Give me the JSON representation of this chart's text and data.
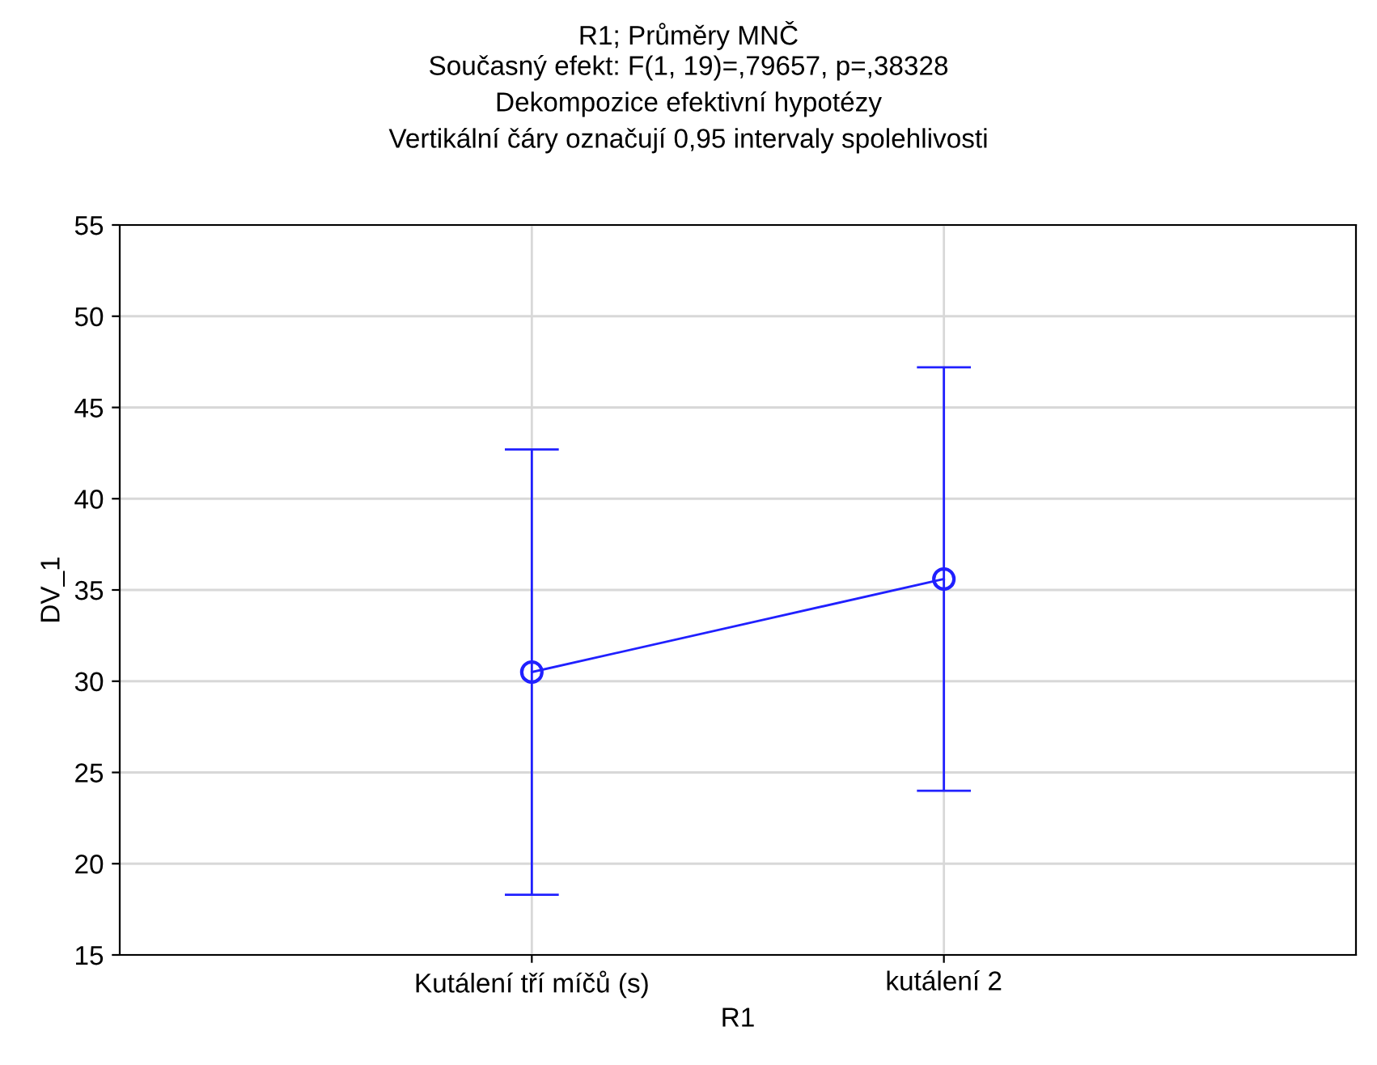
{
  "chart_data": {
    "type": "line",
    "title": "R1; Průměry MNČ",
    "subtitle": "Současný efekt: F(1, 19)=,79657, p=,38328\nDekompozice efektivní hypotézy\nVertikální čáry označují 0,95 intervaly spolehlivosti",
    "xlabel": "R1",
    "ylabel": "DV_1",
    "categories": [
      "Kutálení tří míčů (s)",
      "kutálení 2"
    ],
    "series": [
      {
        "color": "#2020ff",
        "values": [
          30.5,
          35.6
        ],
        "errors": [
          12.2,
          11.6
        ]
      }
    ],
    "ylim": [
      15,
      55
    ],
    "yticks": [
      15,
      20,
      25,
      30,
      35,
      40,
      45,
      50,
      55
    ],
    "grid": true,
    "marker": "circle",
    "line_style": "solid"
  }
}
